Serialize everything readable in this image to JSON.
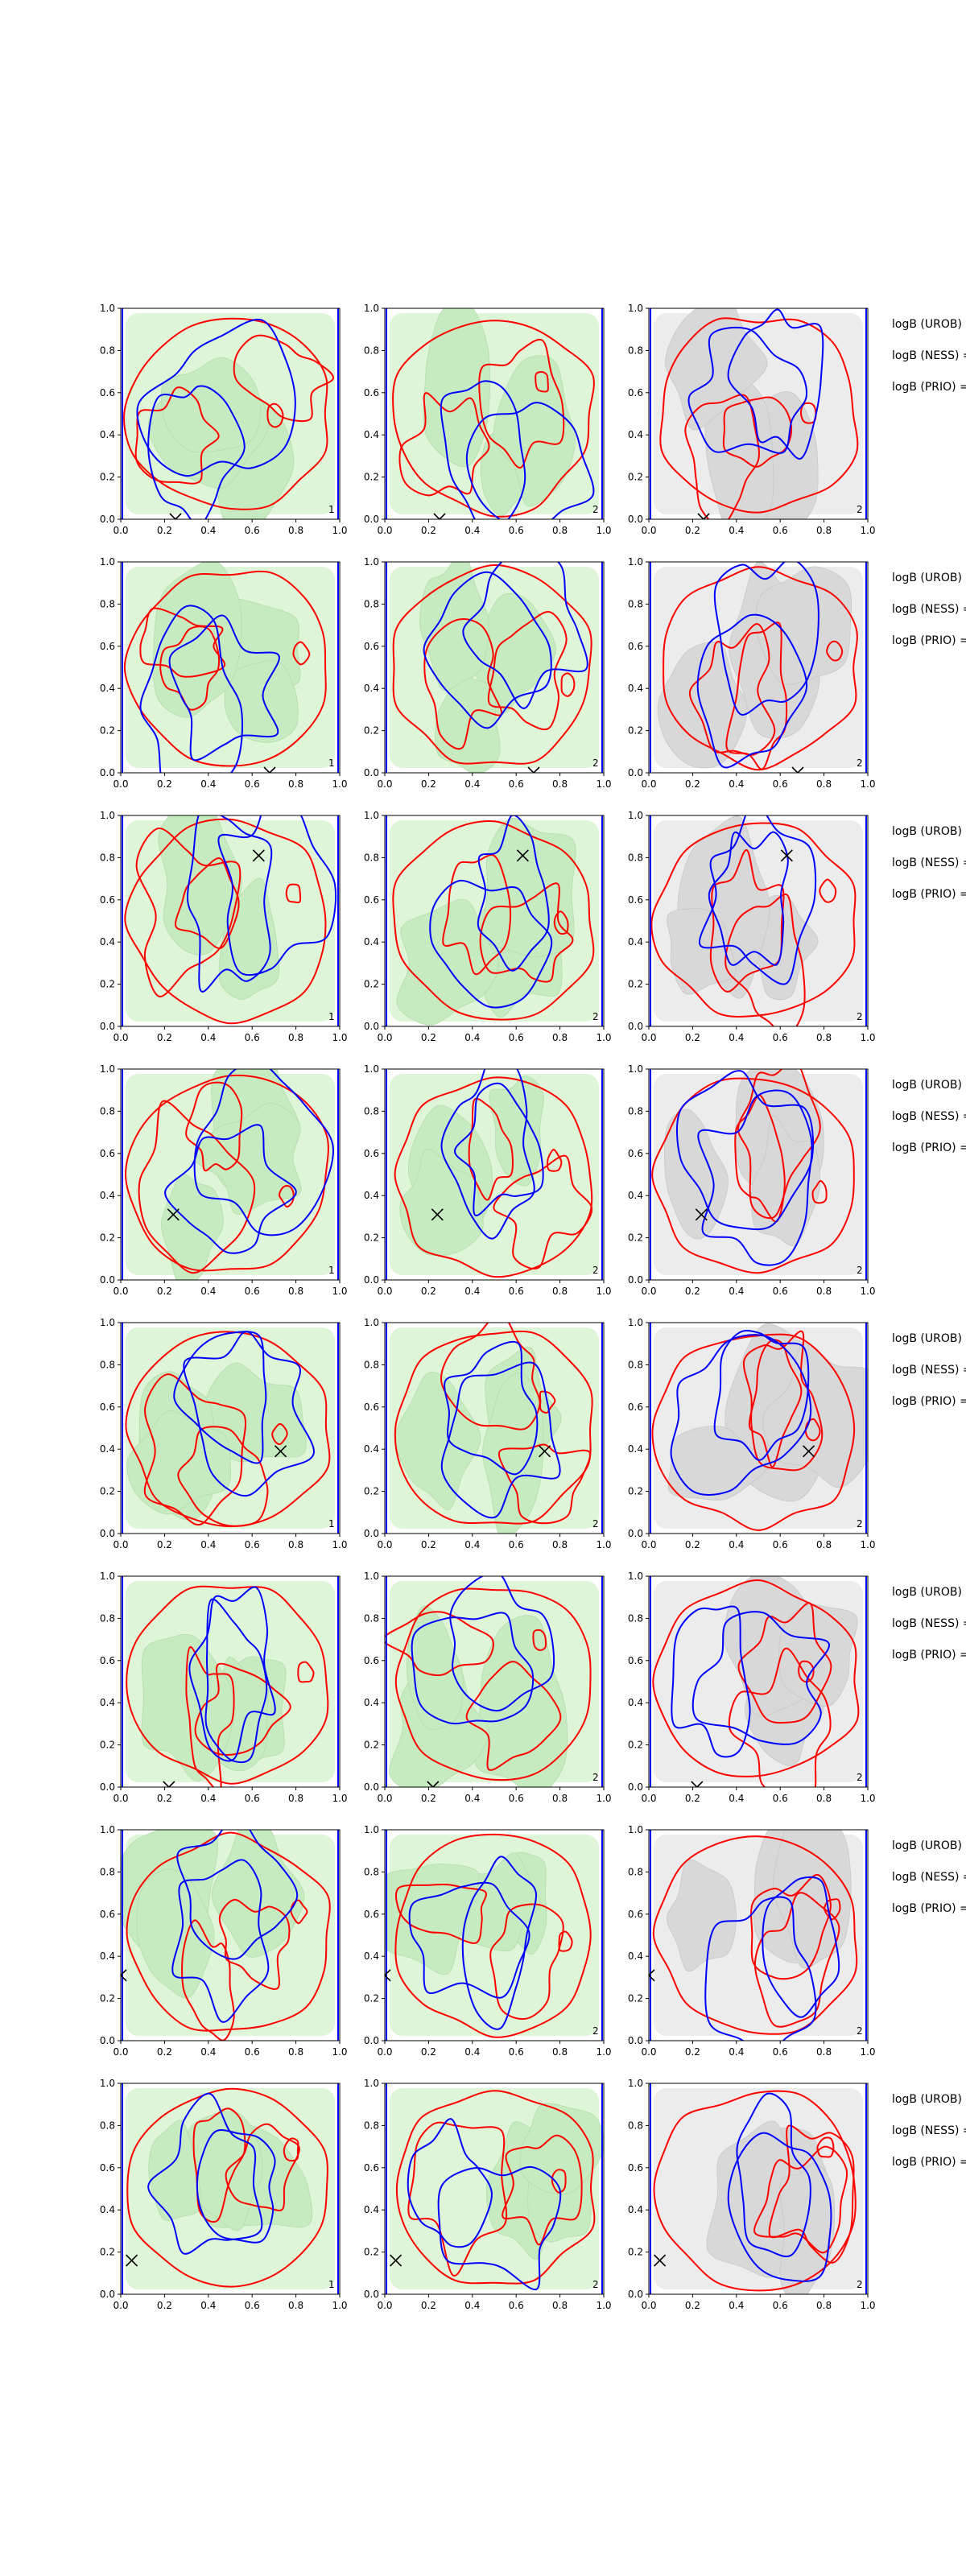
{
  "figure": {
    "rows": 8,
    "cols": 3,
    "colors": {
      "curve_a": "#0000ff",
      "curve_b": "#ff0000",
      "fill_green_light": "#dff5d8",
      "fill_green_mid": "#c6ebc0",
      "fill_grey_light": "#ececec",
      "fill_grey_mid": "#d8d8d8",
      "marker": "#000000"
    },
    "right_labels": [
      "logB (UROB) =",
      "logB (NESS) =",
      "logB (PRIO) ="
    ],
    "panel_numbers": [
      "1",
      "2",
      "2"
    ]
  },
  "chart_data": [
    {
      "type": "contour",
      "row": 1,
      "markers": [
        {
          "x": 0.25,
          "y": 0.0
        }
      ],
      "panels": [
        {
          "label": "1",
          "fill": "green"
        },
        {
          "label": "2",
          "fill": "green"
        },
        {
          "label": "2",
          "fill": "grey"
        }
      ],
      "xticks": [
        "0.0",
        "0.2",
        "0.4",
        "0.6",
        "0.8",
        "1.0"
      ],
      "yticks": [
        "0.0",
        "0.2",
        "0.4",
        "0.6",
        "0.8",
        "1.0"
      ],
      "xlim": [
        0,
        1
      ],
      "ylim": [
        0,
        1
      ],
      "grid": false
    },
    {
      "type": "contour",
      "row": 2,
      "markers": [
        {
          "x": 0.68,
          "y": 0.0
        }
      ],
      "panels": [
        {
          "label": "1",
          "fill": "green"
        },
        {
          "label": "2",
          "fill": "green"
        },
        {
          "label": "2",
          "fill": "grey"
        }
      ],
      "xticks": [
        "0.0",
        "0.2",
        "0.4",
        "0.6",
        "0.8",
        "1.0"
      ],
      "yticks": [
        "0.0",
        "0.2",
        "0.4",
        "0.6",
        "0.8",
        "1.0"
      ],
      "xlim": [
        0,
        1
      ],
      "ylim": [
        0,
        1
      ],
      "grid": false
    },
    {
      "type": "contour",
      "row": 3,
      "markers": [
        {
          "x": 0.63,
          "y": 0.81
        }
      ],
      "panels": [
        {
          "label": "1",
          "fill": "green"
        },
        {
          "label": "2",
          "fill": "green"
        },
        {
          "label": "2",
          "fill": "grey"
        }
      ],
      "xticks": [
        "0.0",
        "0.2",
        "0.4",
        "0.6",
        "0.8",
        "1.0"
      ],
      "yticks": [
        "0.0",
        "0.2",
        "0.4",
        "0.6",
        "0.8",
        "1.0"
      ],
      "xlim": [
        0,
        1
      ],
      "ylim": [
        0,
        1
      ],
      "grid": false
    },
    {
      "type": "contour",
      "row": 4,
      "markers": [
        {
          "x": 0.24,
          "y": 0.31
        }
      ],
      "panels": [
        {
          "label": "1",
          "fill": "green"
        },
        {
          "label": "2",
          "fill": "green"
        },
        {
          "label": "2",
          "fill": "grey"
        }
      ],
      "xticks": [
        "0.0",
        "0.2",
        "0.4",
        "0.6",
        "0.8",
        "1.0"
      ],
      "yticks": [
        "0.0",
        "0.2",
        "0.4",
        "0.6",
        "0.8",
        "1.0"
      ],
      "xlim": [
        0,
        1
      ],
      "ylim": [
        0,
        1
      ],
      "grid": false
    },
    {
      "type": "contour",
      "row": 5,
      "markers": [
        {
          "x": 0.73,
          "y": 0.39
        }
      ],
      "panels": [
        {
          "label": "1",
          "fill": "green"
        },
        {
          "label": "2",
          "fill": "green"
        },
        {
          "label": "2",
          "fill": "grey"
        }
      ],
      "xticks": [
        "0.0",
        "0.2",
        "0.4",
        "0.6",
        "0.8",
        "1.0"
      ],
      "yticks": [
        "0.0",
        "0.2",
        "0.4",
        "0.6",
        "0.8",
        "1.0"
      ],
      "xlim": [
        0,
        1
      ],
      "ylim": [
        0,
        1
      ],
      "grid": false
    },
    {
      "type": "contour",
      "row": 6,
      "markers": [
        {
          "x": 0.22,
          "y": 0.0
        }
      ],
      "panels": [
        {
          "label": "",
          "fill": "green"
        },
        {
          "label": "2",
          "fill": "green"
        },
        {
          "label": "2",
          "fill": "grey"
        }
      ],
      "xticks": [
        "0.0",
        "0.2",
        "0.4",
        "0.6",
        "0.8",
        "1.0"
      ],
      "yticks": [
        "0.0",
        "0.2",
        "0.4",
        "0.6",
        "0.8",
        "1.0"
      ],
      "xlim": [
        0,
        1
      ],
      "ylim": [
        0,
        1
      ],
      "grid": false
    },
    {
      "type": "contour",
      "row": 7,
      "markers": [
        {
          "x": 0.0,
          "y": 0.31
        }
      ],
      "panels": [
        {
          "label": "",
          "fill": "green"
        },
        {
          "label": "2",
          "fill": "green"
        },
        {
          "label": "2",
          "fill": "grey"
        }
      ],
      "xticks": [
        "0.0",
        "0.2",
        "0.4",
        "0.6",
        "0.8",
        "1.0"
      ],
      "yticks": [
        "0.0",
        "0.2",
        "0.4",
        "0.6",
        "0.8",
        "1.0"
      ],
      "xlim": [
        0,
        1
      ],
      "ylim": [
        0,
        1
      ],
      "grid": false
    },
    {
      "type": "contour",
      "row": 8,
      "markers": [
        {
          "x": 0.05,
          "y": 0.16
        }
      ],
      "panels": [
        {
          "label": "1",
          "fill": "green"
        },
        {
          "label": "2",
          "fill": "green"
        },
        {
          "label": "2",
          "fill": "grey"
        }
      ],
      "xticks": [
        "0.0",
        "0.2",
        "0.4",
        "0.6",
        "0.8",
        "1.0"
      ],
      "yticks": [
        "0.0",
        "0.2",
        "0.4",
        "0.6",
        "0.8",
        "1.0"
      ],
      "xlim": [
        0,
        1
      ],
      "ylim": [
        0,
        1
      ],
      "grid": false
    }
  ]
}
